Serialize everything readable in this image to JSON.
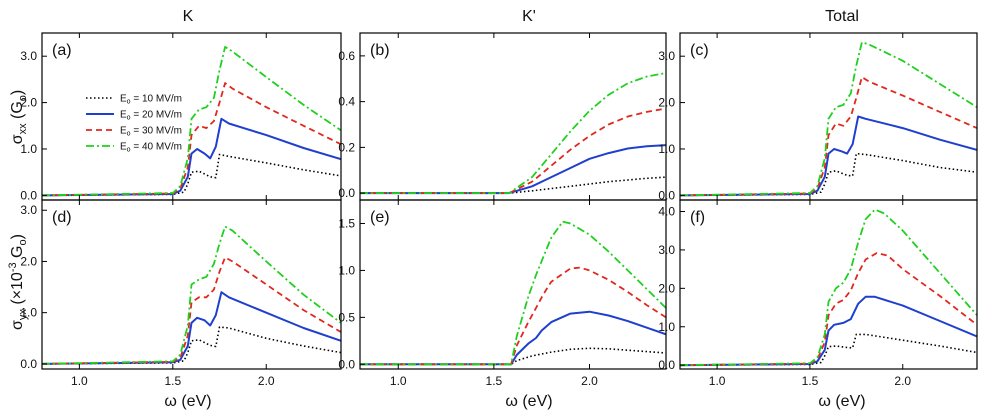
{
  "figure": {
    "column_titles": [
      "K",
      "K'",
      "Total"
    ],
    "xlabel": "ω (eV)",
    "ylabel_top": {
      "main": "σ",
      "sub": "xx",
      "rest": " (G",
      "unit_sub": "o",
      "close": ")"
    },
    "ylabel_bottom": {
      "main": "σ",
      "sub": "yx",
      "rest": " (×10",
      "sup": "-3",
      "mid": " G",
      "unit_sub": "o",
      "close": ")"
    }
  },
  "legend": [
    {
      "prefix": "E",
      "sub": "o",
      "text": " = 10 MV/m"
    },
    {
      "prefix": "E",
      "sub": "o",
      "text": " = 20 MV/m"
    },
    {
      "prefix": "E",
      "sub": "o",
      "text": " = 30 MV/m"
    },
    {
      "prefix": "E",
      "sub": "o",
      "text": " = 40 MV/m"
    }
  ],
  "chart_data": [
    {
      "type": "line",
      "panel_label": "(a)",
      "xlim": [
        0.8,
        2.4
      ],
      "ylim": [
        -0.1,
        3.5
      ],
      "xticks": [
        1.0,
        1.5,
        2.0
      ],
      "xticklabels": [],
      "yticks": [
        0,
        1,
        2,
        3
      ],
      "yticklabels": [
        "0.0",
        "1.0",
        "2.0",
        "3.0"
      ],
      "series": [
        {
          "name": "Eo = 10 MV/m",
          "color": "#000000",
          "style": "dotted",
          "x": [
            0.8,
            1.5,
            1.56,
            1.58,
            1.6,
            1.64,
            1.7,
            1.73,
            1.75,
            1.8,
            2.0,
            2.2,
            2.4
          ],
          "y": [
            0.0,
            0.02,
            0.07,
            0.25,
            0.5,
            0.52,
            0.4,
            0.38,
            0.88,
            0.84,
            0.7,
            0.55,
            0.42
          ]
        },
        {
          "name": "Eo = 20 MV/m",
          "color": "#1f3fcf",
          "style": "solid",
          "x": [
            0.8,
            1.5,
            1.54,
            1.58,
            1.6,
            1.63,
            1.67,
            1.7,
            1.73,
            1.76,
            1.8,
            2.0,
            2.2,
            2.4
          ],
          "y": [
            0.0,
            0.03,
            0.1,
            0.4,
            0.9,
            1.0,
            0.9,
            0.8,
            1.05,
            1.65,
            1.55,
            1.3,
            1.02,
            0.78
          ]
        },
        {
          "name": "Eo = 30 MV/m",
          "color": "#e0281e",
          "style": "dashed",
          "x": [
            0.8,
            1.5,
            1.54,
            1.58,
            1.6,
            1.64,
            1.68,
            1.72,
            1.75,
            1.78,
            1.82,
            2.0,
            2.2,
            2.4
          ],
          "y": [
            0.0,
            0.04,
            0.15,
            0.6,
            1.3,
            1.5,
            1.45,
            1.6,
            2.0,
            2.42,
            2.3,
            1.9,
            1.5,
            1.1
          ]
        },
        {
          "name": "Eo = 40 MV/m",
          "color": "#1fd01f",
          "style": "dashdot",
          "x": [
            0.8,
            1.5,
            1.54,
            1.58,
            1.6,
            1.64,
            1.68,
            1.72,
            1.75,
            1.78,
            1.82,
            2.0,
            2.2,
            2.4
          ],
          "y": [
            0.0,
            0.05,
            0.2,
            0.8,
            1.65,
            1.85,
            1.9,
            2.1,
            2.7,
            3.2,
            3.1,
            2.55,
            1.95,
            1.4
          ]
        }
      ]
    },
    {
      "type": "line",
      "panel_label": "(b)",
      "xlim": [
        0.8,
        2.4
      ],
      "ylim": [
        -0.03,
        0.7
      ],
      "xticks": [
        1.0,
        1.5,
        2.0
      ],
      "xticklabels": [],
      "yticks": [
        0,
        0.2,
        0.4,
        0.6
      ],
      "yticklabels": [
        "0.0",
        "0.2",
        "0.4",
        "0.6"
      ],
      "series": [
        {
          "name": "Eo = 10 MV/m",
          "color": "#000000",
          "style": "dotted",
          "x": [
            0.8,
            1.58,
            1.7,
            1.9,
            2.1,
            2.3,
            2.4
          ],
          "y": [
            0.0,
            0.0,
            0.01,
            0.03,
            0.05,
            0.065,
            0.07
          ]
        },
        {
          "name": "Eo = 20 MV/m",
          "color": "#1f3fcf",
          "style": "solid",
          "x": [
            0.8,
            1.58,
            1.7,
            1.8,
            1.9,
            2.0,
            2.1,
            2.2,
            2.3,
            2.4
          ],
          "y": [
            0.0,
            0.0,
            0.03,
            0.07,
            0.11,
            0.15,
            0.175,
            0.195,
            0.205,
            0.21
          ]
        },
        {
          "name": "Eo = 30 MV/m",
          "color": "#e0281e",
          "style": "dashed",
          "x": [
            0.8,
            1.58,
            1.7,
            1.8,
            1.9,
            2.0,
            2.1,
            2.2,
            2.3,
            2.4
          ],
          "y": [
            0.0,
            0.0,
            0.05,
            0.12,
            0.19,
            0.25,
            0.3,
            0.335,
            0.355,
            0.37
          ]
        },
        {
          "name": "Eo = 40 MV/m",
          "color": "#1fd01f",
          "style": "dashdot",
          "x": [
            0.8,
            1.58,
            1.7,
            1.8,
            1.9,
            2.0,
            2.1,
            2.2,
            2.3,
            2.4
          ],
          "y": [
            0.0,
            0.0,
            0.07,
            0.17,
            0.27,
            0.36,
            0.43,
            0.48,
            0.51,
            0.525
          ]
        }
      ]
    },
    {
      "type": "line",
      "panel_label": "(c)",
      "xlim": [
        0.8,
        2.4
      ],
      "ylim": [
        -0.1,
        3.5
      ],
      "xticks": [
        1.0,
        1.5,
        2.0
      ],
      "xticklabels": [],
      "yticks": [
        0,
        1,
        2,
        3
      ],
      "yticklabels": [
        "0.0",
        "1.0",
        "2.0",
        "3.0"
      ],
      "series": [
        {
          "name": "Eo = 10 MV/m",
          "color": "#000000",
          "style": "dotted",
          "x": [
            0.8,
            1.5,
            1.56,
            1.58,
            1.6,
            1.64,
            1.7,
            1.73,
            1.75,
            1.8,
            2.0,
            2.2,
            2.4
          ],
          "y": [
            0.0,
            0.02,
            0.07,
            0.25,
            0.5,
            0.53,
            0.43,
            0.42,
            0.9,
            0.88,
            0.75,
            0.6,
            0.5
          ]
        },
        {
          "name": "Eo = 20 MV/m",
          "color": "#1f3fcf",
          "style": "solid",
          "x": [
            0.8,
            1.5,
            1.54,
            1.58,
            1.6,
            1.63,
            1.67,
            1.7,
            1.73,
            1.76,
            1.8,
            2.0,
            2.2,
            2.4
          ],
          "y": [
            0.0,
            0.03,
            0.1,
            0.4,
            0.9,
            1.0,
            0.95,
            0.9,
            1.1,
            1.7,
            1.65,
            1.45,
            1.2,
            0.98
          ]
        },
        {
          "name": "Eo = 30 MV/m",
          "color": "#e0281e",
          "style": "dashed",
          "x": [
            0.8,
            1.5,
            1.54,
            1.58,
            1.6,
            1.64,
            1.68,
            1.72,
            1.75,
            1.78,
            1.82,
            2.0,
            2.2,
            2.4
          ],
          "y": [
            0.0,
            0.04,
            0.15,
            0.6,
            1.3,
            1.55,
            1.5,
            1.7,
            2.1,
            2.55,
            2.45,
            2.15,
            1.8,
            1.45
          ]
        },
        {
          "name": "Eo = 40 MV/m",
          "color": "#1fd01f",
          "style": "dashdot",
          "x": [
            0.8,
            1.5,
            1.54,
            1.58,
            1.6,
            1.64,
            1.68,
            1.72,
            1.75,
            1.78,
            1.82,
            2.0,
            2.2,
            2.4
          ],
          "y": [
            0.0,
            0.05,
            0.2,
            0.8,
            1.65,
            1.9,
            1.95,
            2.2,
            2.8,
            3.3,
            3.25,
            2.9,
            2.4,
            1.9
          ]
        }
      ]
    },
    {
      "type": "line",
      "panel_label": "(d)",
      "xlim": [
        0.8,
        2.4
      ],
      "ylim": [
        -0.1,
        3.2
      ],
      "xticks": [
        1.0,
        1.5,
        2.0
      ],
      "xticklabels": [
        "1.0",
        "1.5",
        "2.0"
      ],
      "yticks": [
        0,
        1,
        2,
        3
      ],
      "yticklabels": [
        "0.0",
        "1.0",
        "2.0",
        "3.0"
      ],
      "series": [
        {
          "name": "Eo = 10 MV/m",
          "color": "#000000",
          "style": "dotted",
          "x": [
            0.8,
            1.5,
            1.56,
            1.58,
            1.6,
            1.64,
            1.7,
            1.73,
            1.75,
            1.8,
            2.0,
            2.2,
            2.4
          ],
          "y": [
            0.0,
            0.02,
            0.06,
            0.22,
            0.45,
            0.47,
            0.36,
            0.34,
            0.72,
            0.7,
            0.5,
            0.35,
            0.22
          ]
        },
        {
          "name": "Eo = 20 MV/m",
          "color": "#1f3fcf",
          "style": "solid",
          "x": [
            0.8,
            1.5,
            1.54,
            1.58,
            1.6,
            1.63,
            1.67,
            1.7,
            1.73,
            1.76,
            1.8,
            2.0,
            2.2,
            2.4
          ],
          "y": [
            0.0,
            0.03,
            0.08,
            0.35,
            0.8,
            0.9,
            0.85,
            0.75,
            0.95,
            1.4,
            1.3,
            1.0,
            0.7,
            0.45
          ]
        },
        {
          "name": "Eo = 30 MV/m",
          "color": "#e0281e",
          "style": "dashed",
          "x": [
            0.8,
            1.5,
            1.54,
            1.58,
            1.6,
            1.64,
            1.68,
            1.72,
            1.75,
            1.78,
            1.82,
            2.0,
            2.2,
            2.4
          ],
          "y": [
            0.0,
            0.04,
            0.12,
            0.55,
            1.2,
            1.3,
            1.3,
            1.45,
            1.8,
            2.08,
            2.0,
            1.55,
            1.05,
            0.62
          ]
        },
        {
          "name": "Eo = 40 MV/m",
          "color": "#1fd01f",
          "style": "dashdot",
          "x": [
            0.8,
            1.5,
            1.54,
            1.58,
            1.6,
            1.64,
            1.68,
            1.72,
            1.75,
            1.78,
            1.82,
            2.0,
            2.2,
            2.4
          ],
          "y": [
            0.0,
            0.05,
            0.18,
            0.75,
            1.55,
            1.65,
            1.7,
            1.95,
            2.35,
            2.68,
            2.6,
            2.0,
            1.35,
            0.8
          ]
        }
      ]
    },
    {
      "type": "line",
      "panel_label": "(e)",
      "xlim": [
        0.8,
        2.4
      ],
      "ylim": [
        -0.05,
        1.75
      ],
      "xticks": [
        1.0,
        1.5,
        2.0
      ],
      "xticklabels": [
        "1.0",
        "1.5",
        "2.0"
      ],
      "yticks": [
        0,
        0.5,
        1.0,
        1.5
      ],
      "yticklabels": [
        "0.0",
        "0.5",
        "1.0",
        "1.5"
      ],
      "series": [
        {
          "name": "Eo = 10 MV/m",
          "color": "#000000",
          "style": "dotted",
          "x": [
            0.8,
            1.59,
            1.62,
            1.7,
            1.8,
            1.9,
            2.0,
            2.1,
            2.2,
            2.3,
            2.4
          ],
          "y": [
            0.0,
            0.0,
            0.04,
            0.09,
            0.13,
            0.16,
            0.17,
            0.165,
            0.15,
            0.135,
            0.12
          ]
        },
        {
          "name": "Eo = 20 MV/m",
          "color": "#1f3fcf",
          "style": "solid",
          "x": [
            0.8,
            1.59,
            1.62,
            1.68,
            1.72,
            1.75,
            1.8,
            1.9,
            2.0,
            2.1,
            2.2,
            2.3,
            2.4
          ],
          "y": [
            0.0,
            0.0,
            0.1,
            0.22,
            0.28,
            0.36,
            0.45,
            0.54,
            0.56,
            0.52,
            0.46,
            0.39,
            0.32
          ]
        },
        {
          "name": "Eo = 30 MV/m",
          "color": "#e0281e",
          "style": "dashed",
          "x": [
            0.8,
            1.59,
            1.62,
            1.68,
            1.72,
            1.76,
            1.8,
            1.9,
            1.95,
            2.0,
            2.1,
            2.2,
            2.3,
            2.4
          ],
          "y": [
            0.0,
            0.0,
            0.2,
            0.45,
            0.6,
            0.75,
            0.88,
            1.02,
            1.03,
            1.0,
            0.9,
            0.77,
            0.63,
            0.5
          ]
        },
        {
          "name": "Eo = 40 MV/m",
          "color": "#1fd01f",
          "style": "dashdot",
          "x": [
            0.8,
            1.59,
            1.62,
            1.68,
            1.72,
            1.76,
            1.8,
            1.86,
            1.9,
            2.0,
            2.1,
            2.2,
            2.3,
            2.4
          ],
          "y": [
            0.0,
            0.0,
            0.3,
            0.72,
            0.95,
            1.15,
            1.35,
            1.52,
            1.5,
            1.38,
            1.2,
            1.0,
            0.8,
            0.6
          ]
        }
      ]
    },
    {
      "type": "line",
      "panel_label": "(f)",
      "xlim": [
        0.8,
        2.4
      ],
      "ylim": [
        -0.1,
        4.3
      ],
      "xticks": [
        1.0,
        1.5,
        2.0
      ],
      "xticklabels": [
        "1.0",
        "1.5",
        "2.0"
      ],
      "yticks": [
        0,
        1,
        2,
        3,
        4
      ],
      "yticklabels": [
        "0.0",
        "1.0",
        "2.0",
        "3.0",
        "4.0"
      ],
      "series": [
        {
          "name": "Eo = 10 MV/m",
          "color": "#000000",
          "style": "dotted",
          "x": [
            0.8,
            1.5,
            1.56,
            1.58,
            1.6,
            1.64,
            1.7,
            1.73,
            1.75,
            1.8,
            2.0,
            2.2,
            2.4
          ],
          "y": [
            0.0,
            0.02,
            0.07,
            0.25,
            0.48,
            0.5,
            0.46,
            0.45,
            0.8,
            0.8,
            0.65,
            0.5,
            0.33
          ]
        },
        {
          "name": "Eo = 20 MV/m",
          "color": "#1f3fcf",
          "style": "solid",
          "x": [
            0.8,
            1.5,
            1.54,
            1.58,
            1.6,
            1.63,
            1.68,
            1.72,
            1.76,
            1.8,
            1.85,
            2.0,
            2.2,
            2.4
          ],
          "y": [
            0.0,
            0.03,
            0.1,
            0.4,
            0.9,
            1.05,
            1.1,
            1.2,
            1.6,
            1.78,
            1.78,
            1.55,
            1.15,
            0.75
          ]
        },
        {
          "name": "Eo = 30 MV/m",
          "color": "#e0281e",
          "style": "dashed",
          "x": [
            0.8,
            1.5,
            1.54,
            1.58,
            1.6,
            1.64,
            1.68,
            1.72,
            1.76,
            1.8,
            1.86,
            1.92,
            2.0,
            2.2,
            2.4
          ],
          "y": [
            0.0,
            0.04,
            0.15,
            0.6,
            1.3,
            1.6,
            1.7,
            1.95,
            2.4,
            2.75,
            2.92,
            2.85,
            2.5,
            1.8,
            1.05
          ]
        },
        {
          "name": "Eo = 40 MV/m",
          "color": "#1fd01f",
          "style": "dashdot",
          "x": [
            0.8,
            1.5,
            1.54,
            1.58,
            1.6,
            1.64,
            1.68,
            1.72,
            1.76,
            1.8,
            1.85,
            1.9,
            2.0,
            2.2,
            2.4
          ],
          "y": [
            0.0,
            0.05,
            0.2,
            0.8,
            1.65,
            2.0,
            2.15,
            2.5,
            3.2,
            3.8,
            4.05,
            3.95,
            3.5,
            2.4,
            1.3
          ]
        }
      ]
    }
  ]
}
